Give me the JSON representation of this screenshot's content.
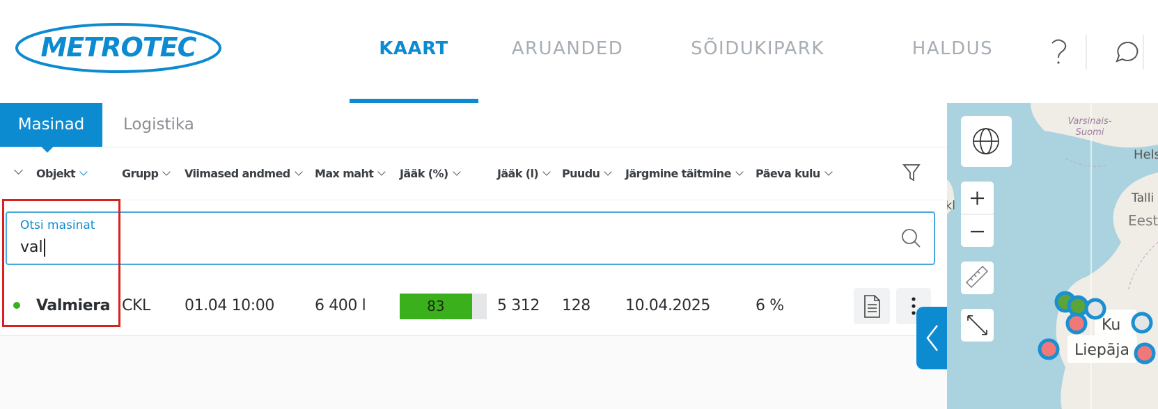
{
  "header": {
    "logo": "METROTEC",
    "nav": [
      "KAART",
      "ARUANDED",
      "SÕIDUKIPARK",
      "HALDUS"
    ]
  },
  "tabs": [
    "Masinad",
    "Logistika"
  ],
  "table": {
    "columns": [
      "Objekt",
      "Grupp",
      "Viimased andmed",
      "Max maht",
      "Jääk (%)",
      "Jääk (l)",
      "Puudu",
      "Järgmine täitmine",
      "Päeva kulu"
    ],
    "search": {
      "label": "Otsi masinat",
      "value": "val"
    },
    "rows": [
      [
        "Valmiera",
        "CKL",
        "01.04 10:00",
        "6 400 l",
        83,
        "5 312",
        "128",
        "10.04.2025",
        "6 %"
      ]
    ]
  },
  "map": {
    "labels": [
      "Varsinais-Suomi",
      "Hels",
      "Talli",
      "Eest",
      "ckl",
      "Ku",
      "Liepāja"
    ]
  }
}
